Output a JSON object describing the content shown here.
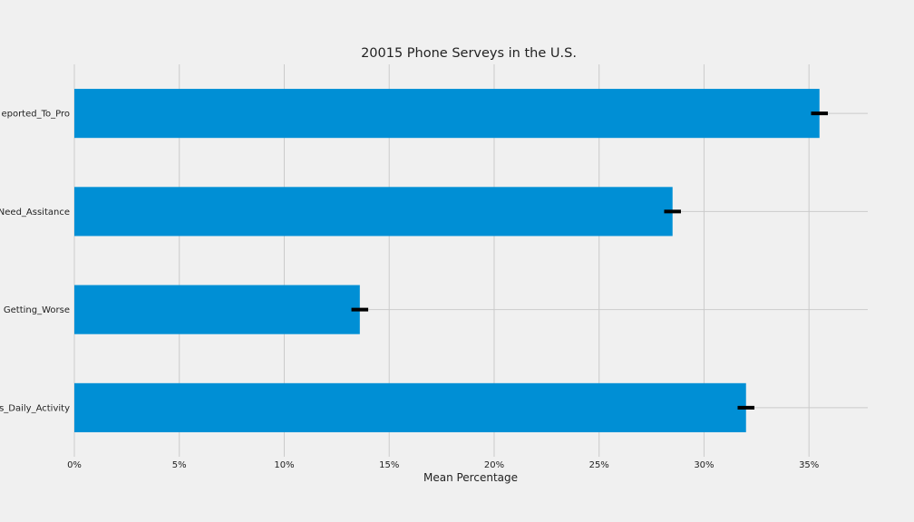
{
  "chart_data": {
    "type": "bar",
    "orientation": "horizontal",
    "title": "20015 Phone Serveys in the U.S.",
    "xlabel": "Mean Percentage",
    "ylabel": "",
    "categories": [
      "s_Daily_Activity",
      "Getting_Worse",
      "Need_Assitance",
      "eported_To_Pro"
    ],
    "values": [
      32.0,
      13.6,
      28.5,
      35.5
    ],
    "errors": [
      0.4,
      0.4,
      0.4,
      0.4
    ],
    "xlim": [
      0,
      37.8
    ],
    "xticks": [
      0,
      5,
      10,
      15,
      20,
      25,
      30,
      35
    ],
    "xtick_labels": [
      "0%",
      "5%",
      "10%",
      "15%",
      "20%",
      "25%",
      "30%",
      "35%"
    ],
    "grid": true,
    "bar_color": "#008fd5",
    "error_color": "#000000",
    "background": "#f0f0f0"
  }
}
